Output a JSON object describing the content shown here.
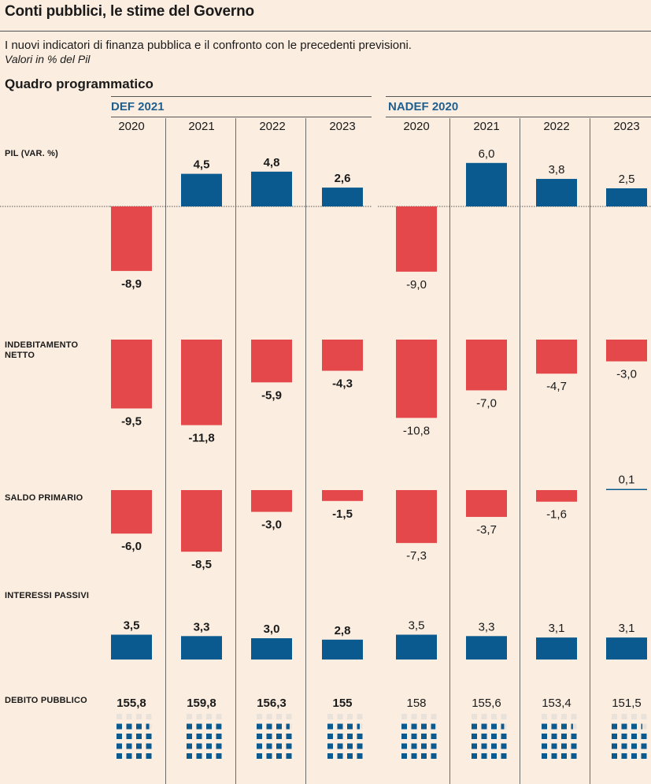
{
  "title": "Conti pubblici, le stime del Governo",
  "subtitle": "I nuovi indicatori di finanza pubblica e il confronto con le precedenti previsioni.",
  "note": "Valori  in % del Pil",
  "section_title": "Quadro programmatico",
  "groups": [
    {
      "name": "DEF 2021",
      "years": [
        "2020",
        "2021",
        "2022",
        "2023"
      ]
    },
    {
      "name": "NADEF 2020",
      "years": [
        "2020",
        "2021",
        "2022",
        "2023"
      ]
    }
  ],
  "row_labels": {
    "pil": "PIL (VAR. %)",
    "indebitamento_1": "INDEBITAMENTO",
    "indebitamento_2": "NETTO",
    "saldo": "SALDO PRIMARIO",
    "interessi": "INTERESSI PASSIVI",
    "debito": "DEBITO PUBBLICO"
  },
  "colors": {
    "positive": "#0b5a8f",
    "negative": "#e5484a",
    "background": "#fbeee0",
    "accent": "#1f5f8f"
  },
  "chart_data": {
    "type": "bar",
    "categories": [
      "2020",
      "2021",
      "2022",
      "2023"
    ],
    "groups": [
      "DEF 2021",
      "NADEF 2020"
    ],
    "rows": [
      {
        "key": "pil",
        "label": "PIL (VAR. %)",
        "series": [
          {
            "group": "DEF 2021",
            "values": [
              -8.9,
              4.5,
              4.8,
              2.6
            ],
            "labels": [
              "-8,9",
              "4,5",
              "4,8",
              "2,6"
            ]
          },
          {
            "group": "NADEF 2020",
            "values": [
              -9.0,
              6.0,
              3.8,
              2.5
            ],
            "labels": [
              "-9,0",
              "6,0",
              "3,8",
              "2,5"
            ]
          }
        ]
      },
      {
        "key": "indebitamento",
        "label": "INDEBITAMENTO NETTO",
        "series": [
          {
            "group": "DEF 2021",
            "values": [
              -9.5,
              -11.8,
              -5.9,
              -4.3
            ],
            "labels": [
              "-9,5",
              "-11,8",
              "-5,9",
              "-4,3"
            ]
          },
          {
            "group": "NADEF 2020",
            "values": [
              -10.8,
              -7.0,
              -4.7,
              -3.0
            ],
            "labels": [
              "-10,8",
              "-7,0",
              "-4,7",
              "-3,0"
            ]
          }
        ]
      },
      {
        "key": "saldo",
        "label": "SALDO PRIMARIO",
        "series": [
          {
            "group": "DEF 2021",
            "values": [
              -6.0,
              -8.5,
              -3.0,
              -1.5
            ],
            "labels": [
              "-6,0",
              "-8,5",
              "-3,0",
              "-1,5"
            ]
          },
          {
            "group": "NADEF 2020",
            "values": [
              -7.3,
              -3.7,
              -1.6,
              0.1
            ],
            "labels": [
              "-7,3",
              "-3,7",
              "-1,6",
              "0,1"
            ]
          }
        ]
      },
      {
        "key": "interessi",
        "label": "INTERESSI PASSIVI",
        "series": [
          {
            "group": "DEF 2021",
            "values": [
              3.5,
              3.3,
              3.0,
              2.8
            ],
            "labels": [
              "3,5",
              "3,3",
              "3,0",
              "2,8"
            ]
          },
          {
            "group": "NADEF 2020",
            "values": [
              3.5,
              3.3,
              3.1,
              3.1
            ],
            "labels": [
              "3,5",
              "3,3",
              "3,1",
              "3,1"
            ]
          }
        ]
      },
      {
        "key": "debito",
        "label": "DEBITO PUBBLICO",
        "series": [
          {
            "group": "DEF 2021",
            "values": [
              155.8,
              159.8,
              156.3,
              155
            ],
            "labels": [
              "155,8",
              "159,8",
              "156,3",
              "155"
            ]
          },
          {
            "group": "NADEF 2020",
            "values": [
              158,
              155.6,
              153.4,
              151.5
            ],
            "labels": [
              "158",
              "155,6",
              "153,4",
              "151,5"
            ]
          }
        ]
      }
    ]
  }
}
